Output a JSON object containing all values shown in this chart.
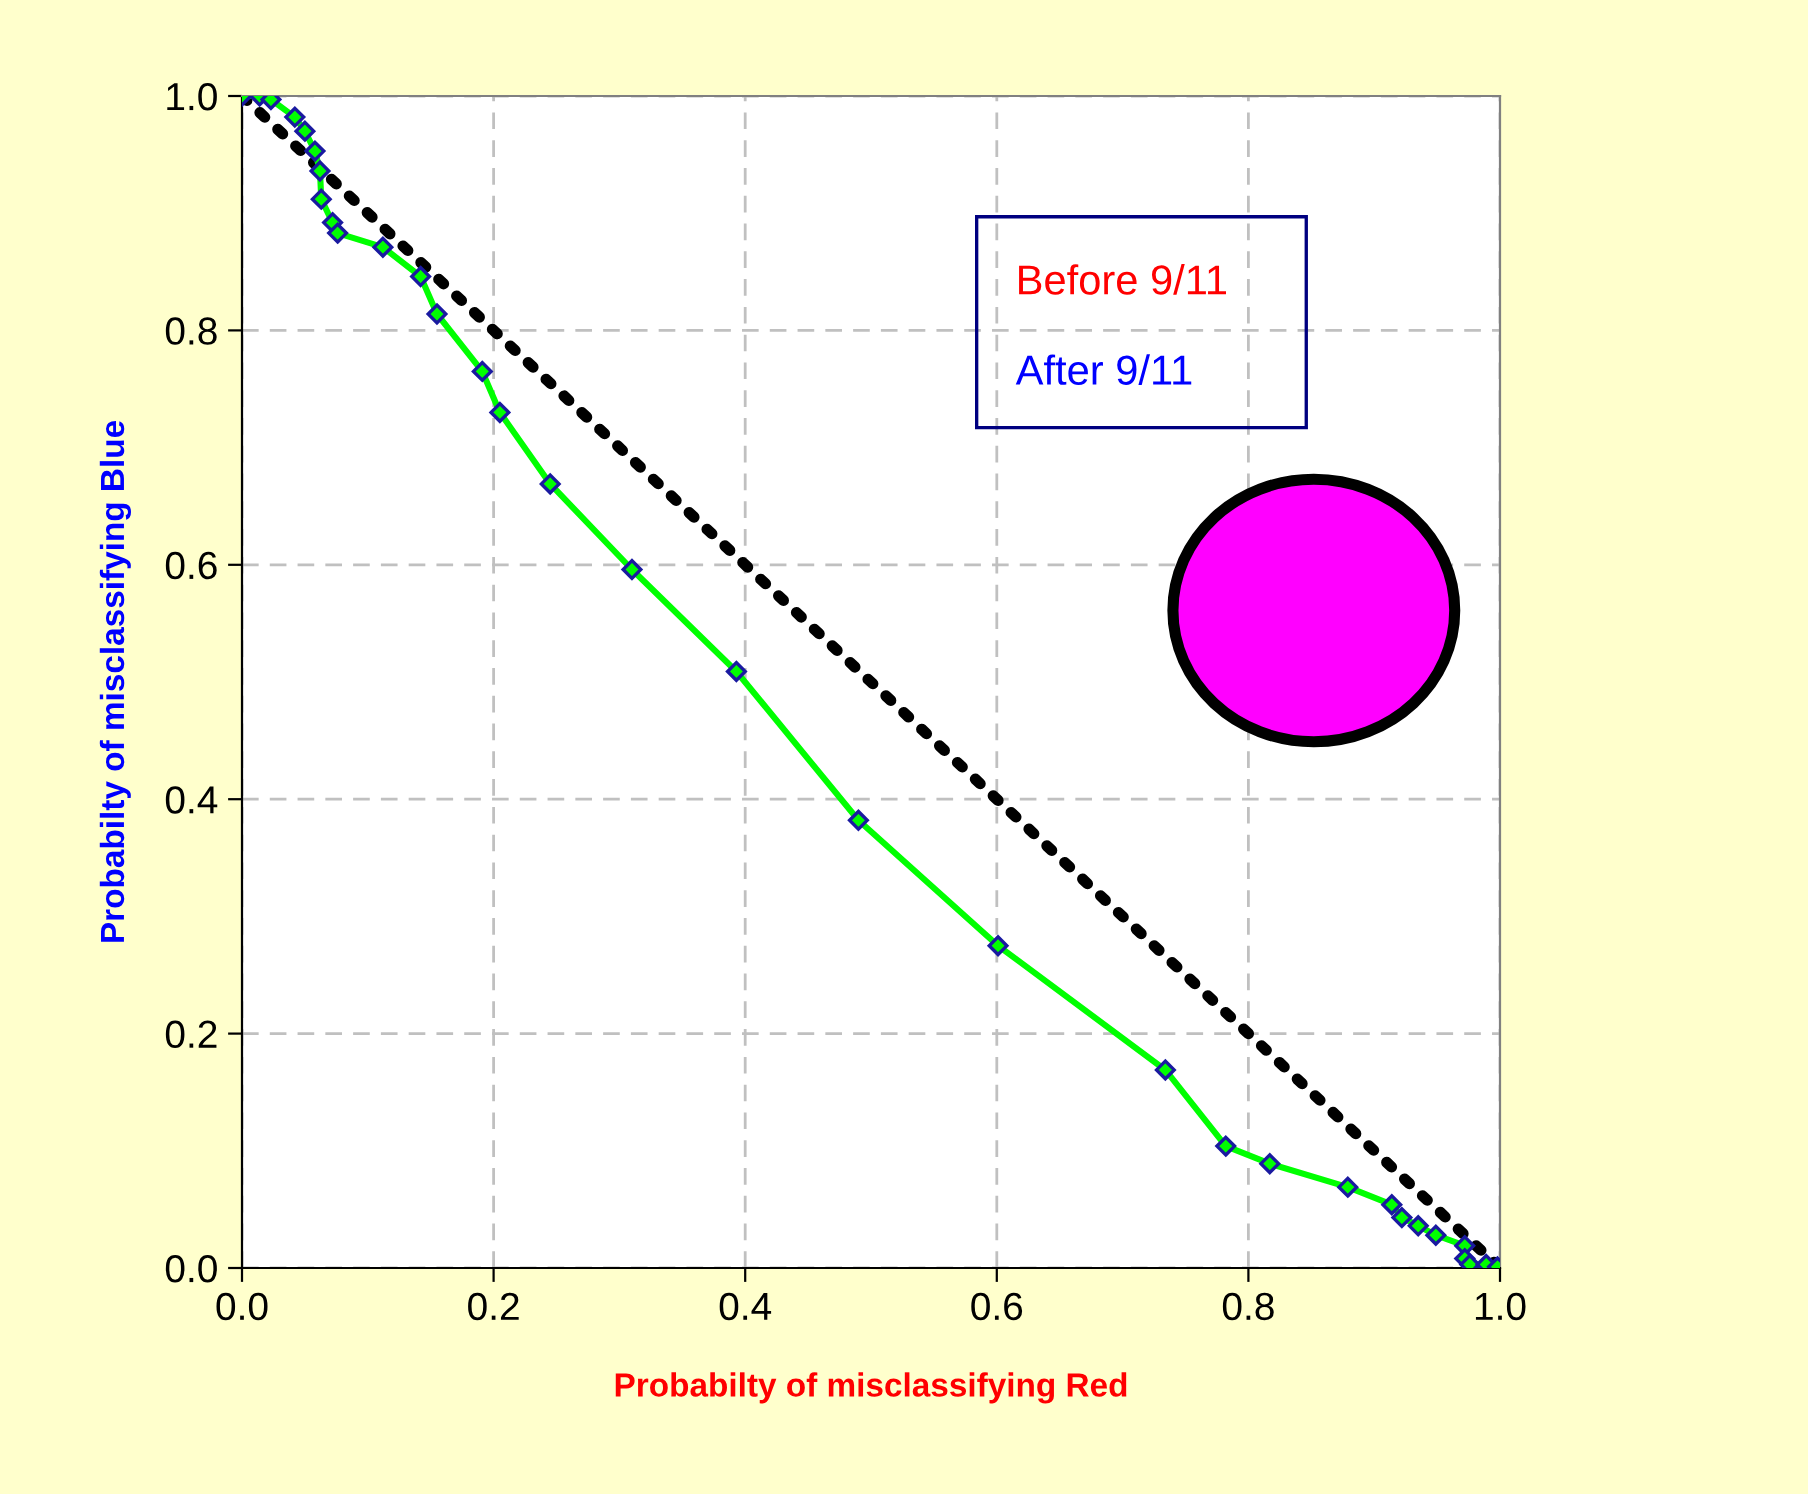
{
  "chart_data": {
    "type": "line",
    "xlabel": "Probabilty of misclassifying Red",
    "ylabel": "Probabilty of misclassifying Blue",
    "xlim": [
      0,
      1
    ],
    "ylim": [
      0,
      1
    ],
    "xticks": [
      {
        "value": 0,
        "label": "0.0"
      },
      0.2,
      0.4,
      0.6,
      0.8,
      {
        "value": 1,
        "label": "1.0"
      }
    ],
    "yticks": [
      {
        "value": 0,
        "label": "0.0"
      },
      0.2,
      0.4,
      0.6,
      0.8,
      {
        "value": 1,
        "label": "1.0"
      }
    ],
    "grid": true,
    "series": [
      {
        "color": "#00ff00",
        "marker": "diamond",
        "line_style": "solid",
        "x": [
          0,
          0.014,
          0.023,
          0.042,
          0.05,
          0.058,
          0.062,
          0.063,
          0.072,
          0.076,
          0.112,
          0.142,
          0.155,
          0.191,
          0.205,
          0.245,
          0.31,
          0.393,
          0.49,
          0.601,
          0.734,
          0.782,
          0.817,
          0.879,
          0.914,
          0.922,
          0.935,
          0.949,
          0.972,
          0.972,
          0.976,
          0.989,
          0.998
        ],
        "values": [
          1,
          1.0,
          0.997,
          0.982,
          0.97,
          0.953,
          0.936,
          0.912,
          0.892,
          0.883,
          0.871,
          0.846,
          0.814,
          0.765,
          0.73,
          0.669,
          0.596,
          0.509,
          0.382,
          0.275,
          0.169,
          0.104,
          0.089,
          0.069,
          0.054,
          0.043,
          0.036,
          0.028,
          0.019,
          0.008,
          0.003,
          0.003,
          0.001
        ]
      },
      {
        "color": "#000000",
        "marker": "none",
        "line_style": "dotted",
        "x": [
          0,
          1
        ],
        "values": [
          1,
          0
        ]
      }
    ],
    "annotations": [
      "Before 9/11",
      "After 9/11"
    ]
  }
}
